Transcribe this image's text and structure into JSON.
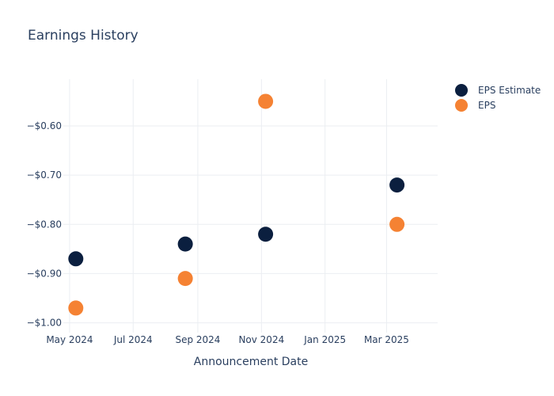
{
  "chart_data": {
    "type": "scatter",
    "title": "Earnings History",
    "xlabel": "Announcement Date",
    "ylabel": "",
    "x_ticks": [
      {
        "date": "2024-05-01",
        "label": "May 2024"
      },
      {
        "date": "2024-07-01",
        "label": "Jul 2024"
      },
      {
        "date": "2024-09-01",
        "label": "Sep 2024"
      },
      {
        "date": "2024-11-01",
        "label": "Nov 2024"
      },
      {
        "date": "2025-01-01",
        "label": "Jan 2025"
      },
      {
        "date": "2025-03-01",
        "label": "Mar 2025"
      }
    ],
    "y_ticks": [
      {
        "value": -0.6,
        "label": "−$0.60"
      },
      {
        "value": -0.7,
        "label": "−$0.70"
      },
      {
        "value": -0.8,
        "label": "−$0.80"
      },
      {
        "value": -0.9,
        "label": "−$0.90"
      },
      {
        "value": -1.0,
        "label": "−$1.00"
      }
    ],
    "xlim": [
      "2024-04-25",
      "2025-04-19"
    ],
    "ylim": [
      -1.02,
      -0.505
    ],
    "grid": true,
    "legend_position": "top-right",
    "series": [
      {
        "name": "EPS Estimate",
        "color": "#0b1f3f",
        "points": [
          {
            "x": "2024-05-07",
            "y": -0.87
          },
          {
            "x": "2024-08-20",
            "y": -0.84
          },
          {
            "x": "2024-11-05",
            "y": -0.82
          },
          {
            "x": "2025-03-11",
            "y": -0.72
          }
        ]
      },
      {
        "name": "EPS",
        "color": "#f58233",
        "points": [
          {
            "x": "2024-05-07",
            "y": -0.97
          },
          {
            "x": "2024-08-20",
            "y": -0.91
          },
          {
            "x": "2024-11-05",
            "y": -0.55
          },
          {
            "x": "2025-03-11",
            "y": -0.8
          }
        ]
      }
    ]
  }
}
